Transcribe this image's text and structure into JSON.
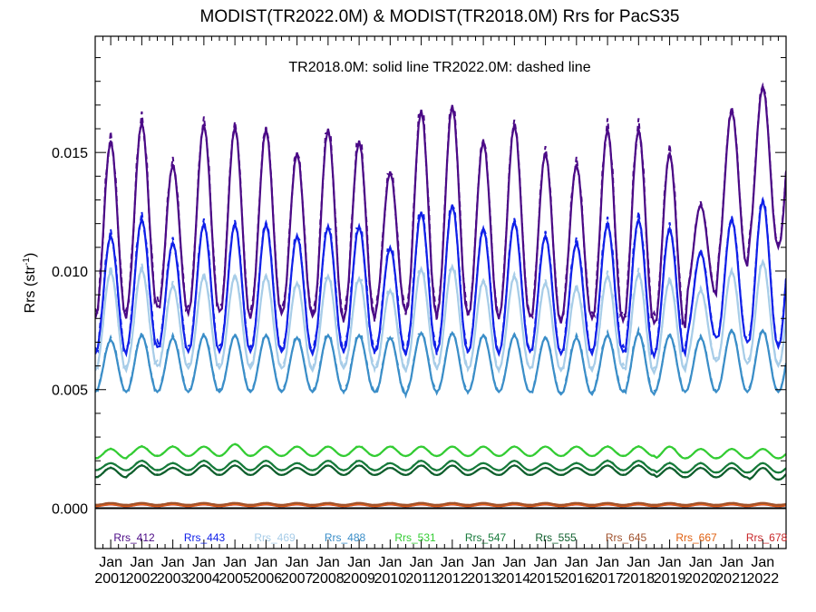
{
  "chart_data": {
    "type": "line",
    "title": "MODIST(TR2022.0M) & MODIST(TR2018.0M)  Rrs for PacS35",
    "ylabel": "Rrs (str",
    "ylabel_sup": "-1",
    "ylabel_close": ")",
    "annotation": "TR2018.0M: solid line   TR2022.0M: dashed line",
    "xlim": [
      2000.5,
      2022.75
    ],
    "ylim": [
      -0.0017,
      0.0199
    ],
    "grid": false,
    "legend_position": "bottom",
    "y_ticks": [
      0.0,
      0.005,
      0.01,
      0.015
    ],
    "y_tick_labels": [
      "0.000",
      "0.005",
      "0.010",
      "0.015"
    ],
    "x_ticks": [
      {
        "value": 2001,
        "month": "Jan",
        "year": "2001"
      },
      {
        "value": 2002,
        "month": "Jan",
        "year": "2002"
      },
      {
        "value": 2003,
        "month": "Jan",
        "year": "2003"
      },
      {
        "value": 2004,
        "month": "Jan",
        "year": "2004"
      },
      {
        "value": 2005,
        "month": "Jan",
        "year": "2005"
      },
      {
        "value": 2006,
        "month": "Jan",
        "year": "2006"
      },
      {
        "value": 2007,
        "month": "Jan",
        "year": "2007"
      },
      {
        "value": 2008,
        "month": "Jan",
        "year": "2008"
      },
      {
        "value": 2009,
        "month": "Jan",
        "year": "2009"
      },
      {
        "value": 2010,
        "month": "Jan",
        "year": "2010"
      },
      {
        "value": 2011,
        "month": "Jan",
        "year": "2011"
      },
      {
        "value": 2012,
        "month": "Jan",
        "year": "2012"
      },
      {
        "value": 2013,
        "month": "Jan",
        "year": "2013"
      },
      {
        "value": 2014,
        "month": "Jan",
        "year": "2014"
      },
      {
        "value": 2015,
        "month": "Jan",
        "year": "2015"
      },
      {
        "value": 2016,
        "month": "Jan",
        "year": "2016"
      },
      {
        "value": 2017,
        "month": "Jan",
        "year": "2017"
      },
      {
        "value": 2018,
        "month": "Jan",
        "year": "2018"
      },
      {
        "value": 2019,
        "month": "Jan",
        "year": "2019"
      },
      {
        "value": 2020,
        "month": "Jan",
        "year": "2020"
      },
      {
        "value": 2021,
        "month": "Jan",
        "year": "2021"
      },
      {
        "value": 2022,
        "month": "Jan",
        "year": "2022"
      }
    ],
    "x_start": 2000.5,
    "x_end": 2022.75,
    "seasonal_phase_year": 2000.5,
    "series": [
      {
        "name": "Rrs_412",
        "color": "#4b0a86",
        "peaks": [
          0.0155,
          0.0163,
          0.0145,
          0.0162,
          0.0161,
          0.016,
          0.015,
          0.016,
          0.0155,
          0.0142,
          0.0168,
          0.017,
          0.0155,
          0.0162,
          0.015,
          0.0145,
          0.016,
          0.016,
          0.015,
          0.0128,
          0.0168,
          0.0178
        ],
        "troughs": [
          0.008,
          0.0085,
          0.0082,
          0.0083,
          0.008,
          0.0082,
          0.0081,
          0.0079,
          0.008,
          0.0083,
          0.0081,
          0.0082,
          0.008,
          0.0081,
          0.0078,
          0.008,
          0.0079,
          0.0078,
          0.0076,
          0.009,
          0.0102,
          0.011
        ]
      },
      {
        "name": "Rrs_443",
        "color": "#1020e8",
        "peaks": [
          0.0115,
          0.0122,
          0.0112,
          0.012,
          0.012,
          0.012,
          0.0115,
          0.0119,
          0.0119,
          0.011,
          0.0125,
          0.0128,
          0.0118,
          0.0121,
          0.0115,
          0.0112,
          0.012,
          0.0122,
          0.0118,
          0.0108,
          0.0122,
          0.013
        ],
        "troughs": [
          0.0065,
          0.0068,
          0.0066,
          0.0066,
          0.0066,
          0.0066,
          0.0065,
          0.0066,
          0.0066,
          0.0065,
          0.0066,
          0.0066,
          0.0065,
          0.0066,
          0.0065,
          0.0065,
          0.0066,
          0.0064,
          0.0065,
          0.0072,
          0.007,
          0.0068
        ]
      },
      {
        "name": "Rrs_469",
        "color": "#a8cde8",
        "peaks": [
          0.01,
          0.0101,
          0.0094,
          0.0098,
          0.0098,
          0.0098,
          0.0095,
          0.0098,
          0.0097,
          0.0092,
          0.0101,
          0.0102,
          0.0096,
          0.0098,
          0.0095,
          0.0093,
          0.0098,
          0.0099,
          0.0096,
          0.0092,
          0.01,
          0.0104
        ],
        "troughs": [
          0.0058,
          0.006,
          0.0059,
          0.0059,
          0.0059,
          0.0059,
          0.0058,
          0.0059,
          0.0059,
          0.0058,
          0.0059,
          0.0059,
          0.0058,
          0.0059,
          0.0058,
          0.0058,
          0.0059,
          0.0057,
          0.0058,
          0.0062,
          0.0061,
          0.006
        ]
      },
      {
        "name": "Rrs_488",
        "color": "#3b8ec8",
        "peaks": [
          0.0071,
          0.0073,
          0.0072,
          0.0073,
          0.0073,
          0.0073,
          0.0072,
          0.0073,
          0.0073,
          0.0072,
          0.0074,
          0.0074,
          0.0073,
          0.0073,
          0.0072,
          0.0072,
          0.0073,
          0.0074,
          0.0073,
          0.0072,
          0.0075,
          0.0075
        ],
        "troughs": [
          0.0049,
          0.0049,
          0.0049,
          0.0049,
          0.0049,
          0.0049,
          0.0049,
          0.0049,
          0.0049,
          0.0048,
          0.0049,
          0.0049,
          0.0049,
          0.0049,
          0.0048,
          0.0048,
          0.0049,
          0.0048,
          0.0049,
          0.0049,
          0.0049,
          0.0049
        ]
      },
      {
        "name": "Rrs_531",
        "color": "#33cc33",
        "peaks": [
          0.0025,
          0.0026,
          0.0026,
          0.0026,
          0.0027,
          0.0026,
          0.0026,
          0.0026,
          0.0026,
          0.0026,
          0.0026,
          0.0026,
          0.0026,
          0.0026,
          0.0026,
          0.0026,
          0.0026,
          0.0026,
          0.0026,
          0.0025,
          0.0025,
          0.0025
        ],
        "troughs": [
          0.0021,
          0.0022,
          0.0022,
          0.0022,
          0.0022,
          0.0022,
          0.0022,
          0.0022,
          0.0022,
          0.0022,
          0.0022,
          0.0022,
          0.0022,
          0.0022,
          0.0022,
          0.0022,
          0.0022,
          0.0022,
          0.0021,
          0.0021,
          0.0021,
          0.0021
        ]
      },
      {
        "name": "Rrs_547",
        "color": "#167a3a",
        "peaks": [
          0.0019,
          0.002,
          0.0019,
          0.002,
          0.002,
          0.002,
          0.0019,
          0.002,
          0.002,
          0.0019,
          0.002,
          0.002,
          0.0019,
          0.002,
          0.0019,
          0.0019,
          0.002,
          0.002,
          0.0019,
          0.0019,
          0.0019,
          0.0019
        ],
        "troughs": [
          0.0016,
          0.0016,
          0.0016,
          0.0016,
          0.0016,
          0.0016,
          0.0016,
          0.0016,
          0.0016,
          0.0016,
          0.0016,
          0.0016,
          0.0016,
          0.0016,
          0.0016,
          0.0016,
          0.0016,
          0.0016,
          0.0015,
          0.0015,
          0.0015,
          0.0015
        ]
      },
      {
        "name": "Rrs_555",
        "color": "#0e5e2c",
        "peaks": [
          0.0017,
          0.0018,
          0.0017,
          0.0018,
          0.0018,
          0.0018,
          0.0017,
          0.0018,
          0.0018,
          0.0017,
          0.0018,
          0.0018,
          0.0017,
          0.0018,
          0.0017,
          0.0017,
          0.0018,
          0.0018,
          0.0017,
          0.0017,
          0.0017,
          0.0017
        ],
        "troughs": [
          0.0013,
          0.0014,
          0.0014,
          0.0014,
          0.0014,
          0.0014,
          0.0014,
          0.0014,
          0.0014,
          0.0014,
          0.0014,
          0.0014,
          0.0014,
          0.0014,
          0.0014,
          0.0014,
          0.0014,
          0.0014,
          0.0013,
          0.0013,
          0.0013,
          0.0012
        ]
      },
      {
        "name": "Rrs_645",
        "color": "#a0522d",
        "peaks": [
          0.00022,
          0.00022,
          0.00022,
          0.00022,
          0.00022,
          0.00022,
          0.00022,
          0.00022,
          0.00022,
          0.00022,
          0.00022,
          0.00022,
          0.00022,
          0.00022,
          0.00022,
          0.00022,
          0.00022,
          0.00022,
          0.00022,
          0.00022,
          0.00022,
          0.00022
        ],
        "troughs": [
          0.00014,
          0.00014,
          0.00014,
          0.00014,
          0.00014,
          0.00014,
          0.00014,
          0.00014,
          0.00014,
          0.00014,
          0.00014,
          0.00014,
          0.00014,
          0.00014,
          0.00014,
          0.00014,
          0.00014,
          0.00014,
          0.00014,
          0.00014,
          0.00014,
          0.00014
        ]
      },
      {
        "name": "Rrs_667",
        "color": "#e06010",
        "peaks": [
          0.00018,
          0.00018,
          0.00018,
          0.00018,
          0.00018,
          0.00018,
          0.00018,
          0.00018,
          0.00018,
          0.00018,
          0.00018,
          0.00018,
          0.00018,
          0.00018,
          0.00018,
          0.00018,
          0.00018,
          0.00018,
          0.00018,
          0.00018,
          0.00018,
          0.00018
        ],
        "troughs": [
          0.0001,
          0.0001,
          0.0001,
          0.0001,
          0.0001,
          0.0001,
          0.0001,
          0.0001,
          0.0001,
          0.0001,
          0.0001,
          0.0001,
          0.0001,
          0.0001,
          0.0001,
          0.0001,
          0.0001,
          0.0001,
          0.0001,
          0.0001,
          0.0001,
          0.0001
        ]
      },
      {
        "name": "Rrs_678",
        "color": "#c8282a",
        "peaks": [
          0.00016,
          0.00016,
          0.00016,
          0.00016,
          0.00016,
          0.00016,
          0.00016,
          0.00016,
          0.00016,
          0.00016,
          0.00016,
          0.00016,
          0.00016,
          0.00016,
          0.00016,
          0.00016,
          0.00016,
          0.00016,
          0.00016,
          0.00016,
          0.00016,
          0.00016
        ],
        "troughs": [
          9e-05,
          9e-05,
          9e-05,
          9e-05,
          9e-05,
          9e-05,
          9e-05,
          9e-05,
          9e-05,
          9e-05,
          9e-05,
          9e-05,
          9e-05,
          9e-05,
          9e-05,
          9e-05,
          9e-05,
          9e-05,
          9e-05,
          9e-05,
          9e-05,
          9e-05
        ]
      }
    ],
    "zero_line_color": "#000000"
  }
}
